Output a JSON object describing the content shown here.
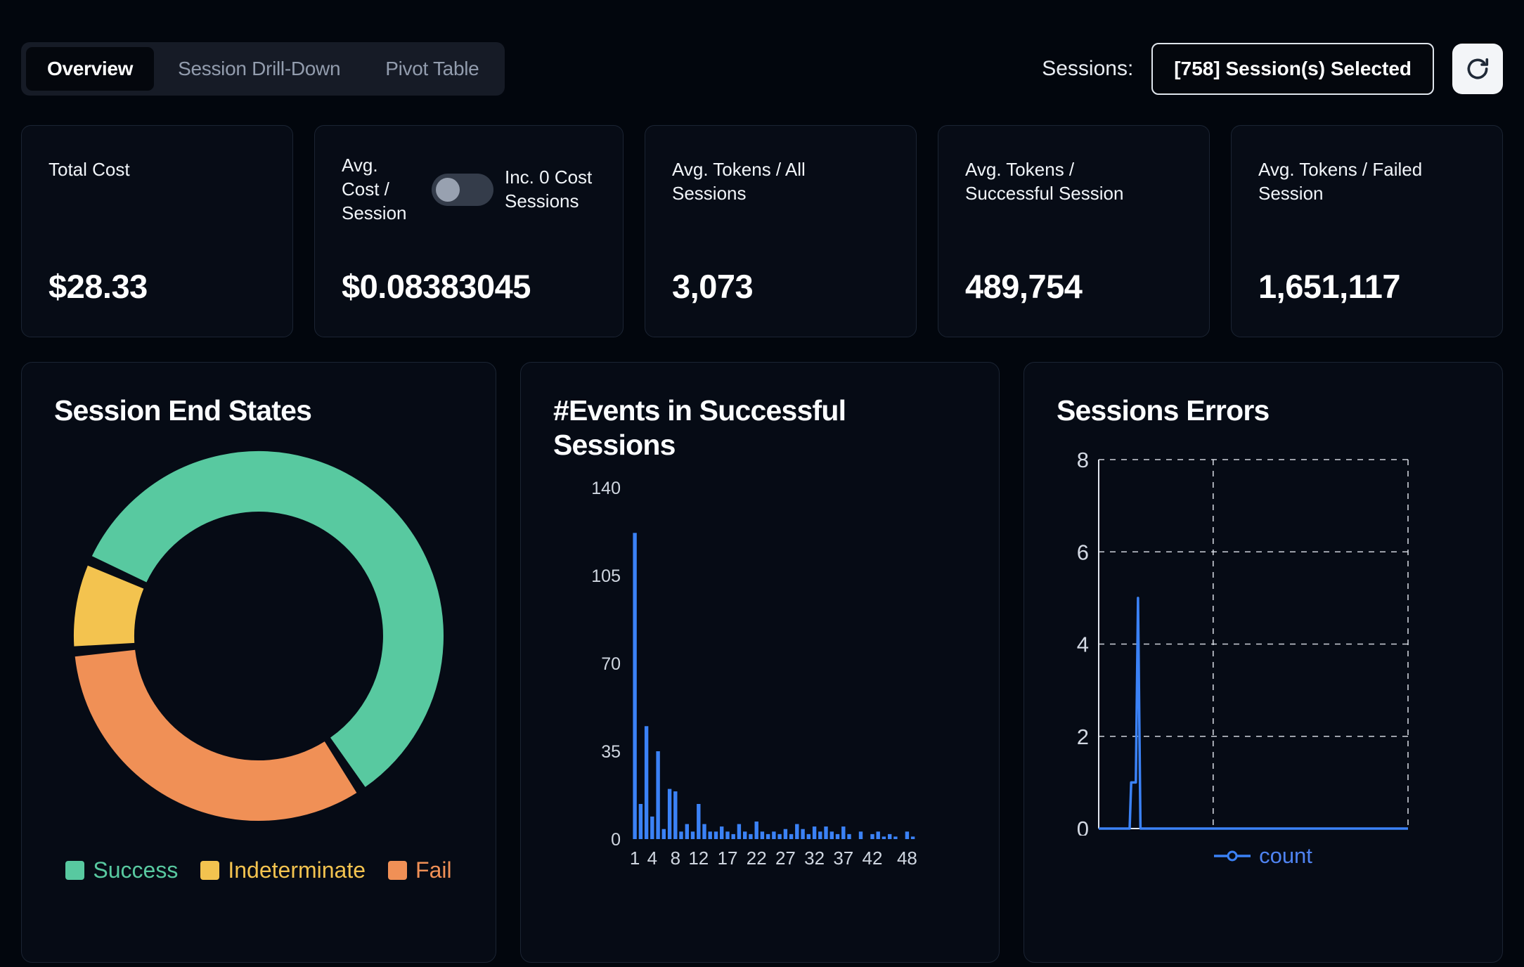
{
  "header": {
    "tabs": [
      {
        "label": "Overview",
        "active": true
      },
      {
        "label": "Session Drill-Down",
        "active": false
      },
      {
        "label": "Pivot Table",
        "active": false
      }
    ],
    "sessions_label": "Sessions:",
    "sessions_selector": "[758] Session(s) Selected"
  },
  "stats": {
    "total_cost": {
      "label": "Total Cost",
      "value": "$28.33"
    },
    "avg_cost": {
      "label_left": "Avg. Cost / Session",
      "label_right": "Inc. 0 Cost Sessions",
      "toggle_state": "off",
      "value": "$0.08383045"
    },
    "avg_tokens_all": {
      "label": "Avg. Tokens / All Sessions",
      "value": "3,073"
    },
    "avg_tokens_success": {
      "label": "Avg. Tokens / Successful Session",
      "value": "489,754"
    },
    "avg_tokens_failed": {
      "label": "Avg. Tokens / Failed Session",
      "value": "1,651,117"
    }
  },
  "chart_data": [
    {
      "type": "pie",
      "variant": "donut",
      "title": "Session End States",
      "labels": [
        "Success",
        "Indeterminate",
        "Fail"
      ],
      "values_percent": [
        59,
        8,
        33
      ],
      "colors": [
        "#58c9a0",
        "#f3c34f",
        "#f09056"
      ],
      "legend_position": "bottom"
    },
    {
      "type": "bar",
      "title": "#Events in Successful Sessions",
      "color": "#3b82f6",
      "xlabel": "",
      "ylabel": "",
      "ylim": [
        0,
        140
      ],
      "y_ticks": [
        0,
        35,
        70,
        105,
        140
      ],
      "x_tick_labels": [
        1,
        4,
        8,
        12,
        17,
        22,
        27,
        32,
        37,
        42,
        48
      ],
      "x_bins_start": 1,
      "values": [
        122,
        14,
        45,
        9,
        35,
        4,
        20,
        19,
        3,
        6,
        3,
        14,
        6,
        3,
        3,
        5,
        3,
        2,
        6,
        3,
        2,
        7,
        3,
        2,
        3,
        2,
        4,
        2,
        6,
        4,
        2,
        5,
        3,
        5,
        3,
        2,
        5,
        2,
        0,
        3,
        0,
        2,
        3,
        1,
        2,
        1,
        0,
        3,
        1,
        0
      ]
    },
    {
      "type": "line",
      "title": "Sessions Errors",
      "ylim": [
        0,
        8
      ],
      "y_ticks": [
        0,
        2,
        4,
        6,
        8
      ],
      "grid": "dashed",
      "legend_position": "bottom",
      "series": [
        {
          "name": "count",
          "color": "#3b82f6",
          "points": [
            [
              0,
              0
            ],
            [
              0.1,
              0
            ],
            [
              0.105,
              1
            ],
            [
              0.12,
              1
            ],
            [
              0.127,
              5
            ],
            [
              0.135,
              0
            ],
            [
              1,
              0
            ]
          ]
        }
      ]
    }
  ]
}
